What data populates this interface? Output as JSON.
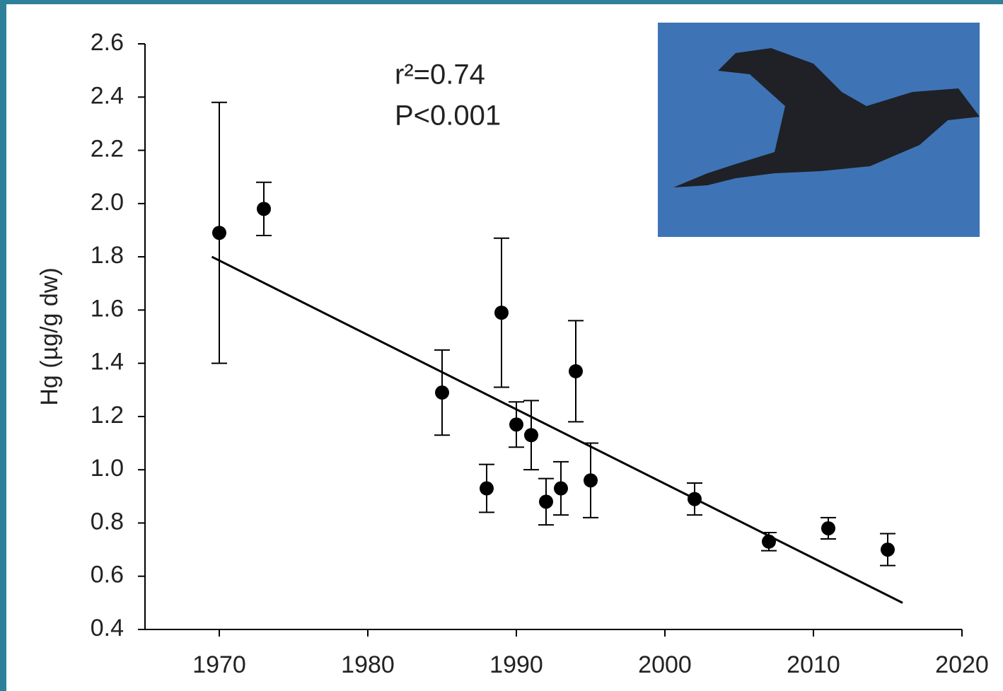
{
  "chart_data": {
    "type": "scatter",
    "ylabel": "Hg (µg/g dw)",
    "annotations": [
      "r²=0.74",
      "P<0.001"
    ],
    "x": [
      1970,
      1973,
      1985,
      1988,
      1989,
      1990,
      1991,
      1992,
      1993,
      1994,
      1995,
      2002,
      2007,
      2011,
      2015
    ],
    "series": [
      {
        "color": "#000000",
        "values": [
          1.89,
          1.98,
          1.29,
          0.93,
          1.59,
          1.17,
          1.13,
          0.88,
          0.93,
          1.37,
          0.96,
          0.89,
          0.73,
          0.78,
          0.7
        ],
        "errors": [
          0.49,
          0.1,
          0.16,
          0.09,
          0.28,
          0.085,
          0.13,
          0.087,
          0.1,
          0.19,
          0.14,
          0.06,
          0.034,
          0.04,
          0.06
        ]
      }
    ],
    "trend": {
      "x": [
        1969.5,
        2016
      ],
      "y": [
        1.8,
        0.5
      ],
      "color": "#000000"
    },
    "xlim": [
      1965,
      2020
    ],
    "xticks": [
      1970,
      1980,
      1990,
      2000,
      2010,
      2020
    ],
    "ylim": [
      0.4,
      2.6
    ],
    "yticks": [
      0.4,
      0.6,
      0.8,
      {
        "value": 1,
        "label": "1.0"
      },
      1.2,
      1.4,
      1.6,
      1.8,
      {
        "value": 2,
        "label": "2.0"
      },
      2.2,
      2.4,
      2.6
    ],
    "grid": false
  }
}
